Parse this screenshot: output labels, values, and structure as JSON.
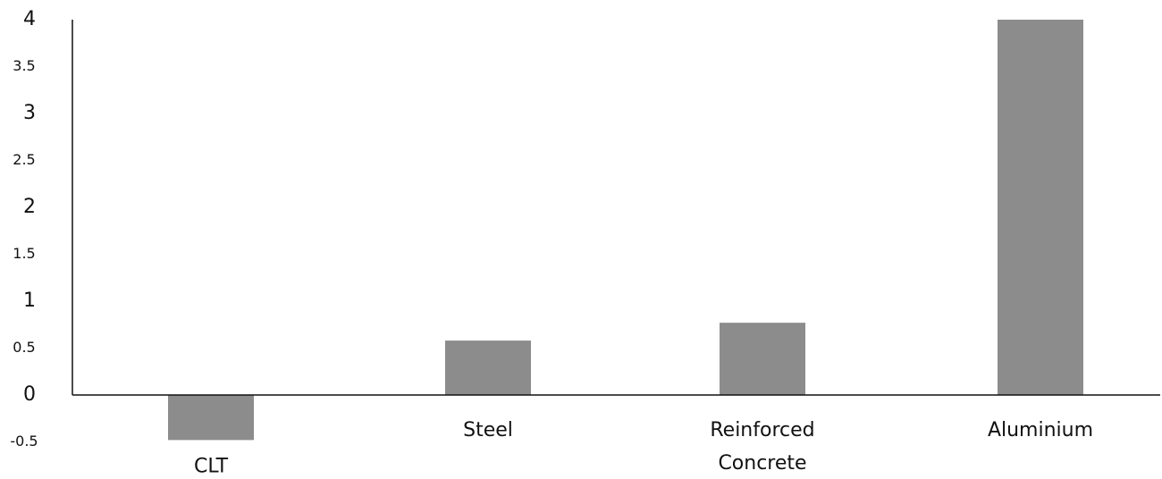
{
  "chart_data": {
    "type": "bar",
    "title": "",
    "xlabel": "",
    "ylabel": "",
    "categories": [
      [
        "CLT"
      ],
      [
        "Steel"
      ],
      [
        "Reinforced",
        "Concrete"
      ],
      [
        "Aluminium"
      ]
    ],
    "values": [
      -0.48,
      0.58,
      0.77,
      4.0
    ],
    "ylim": [
      -0.5,
      4
    ],
    "yticks": [
      {
        "value": 4,
        "label": "4",
        "major": true
      },
      {
        "value": 3.5,
        "label": "3.5",
        "major": false
      },
      {
        "value": 3,
        "label": "3",
        "major": true
      },
      {
        "value": 2.5,
        "label": "2.5",
        "major": false
      },
      {
        "value": 2,
        "label": "2",
        "major": true
      },
      {
        "value": 1.5,
        "label": "1.5",
        "major": false
      },
      {
        "value": 1,
        "label": "1",
        "major": true
      },
      {
        "value": 0.5,
        "label": "0.5",
        "major": false
      },
      {
        "value": 0,
        "label": "0",
        "major": true
      },
      {
        "value": -0.5,
        "label": "-0.5",
        "major": false
      }
    ],
    "bar_color": "#8c8c8c",
    "grid": false,
    "legend": "none"
  }
}
